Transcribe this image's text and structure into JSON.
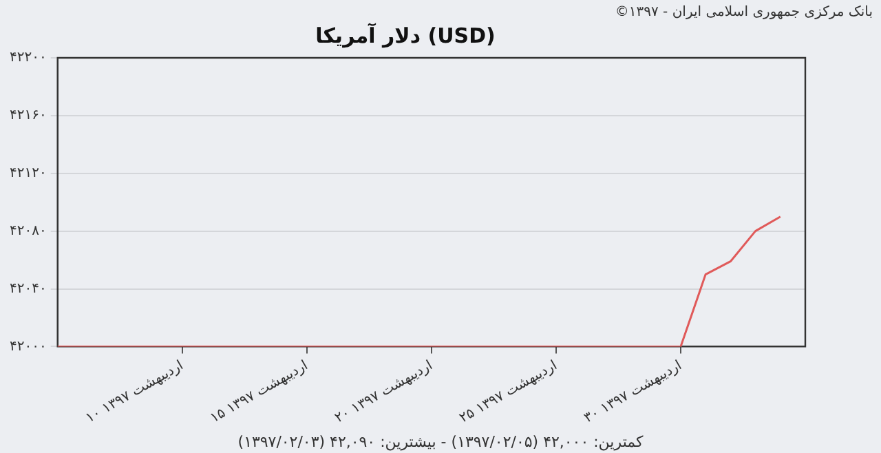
{
  "chart_data": {
    "type": "line",
    "title": "دلار آمریکا (USD)",
    "annotations": [
      "بانک مرکزی جمهوری اسلامی ایران - ۱۳۹۷©",
      "کمترین: ۴۲,۰۰۰ (۱۳۹۷/۰۲/۰۵) - بیشترین: ۴۲,۰۹۰ (۱۳۹۷/۰۲/۰۳)"
    ],
    "categories": [
      null,
      null,
      null,
      null,
      null,
      "۱۰ اردیبهشت ۱۳۹۷",
      null,
      null,
      null,
      null,
      "۱۵ اردیبهشت ۱۳۹۷",
      null,
      null,
      null,
      null,
      "۲۰ اردیبهشت ۱۳۹۷",
      null,
      null,
      null,
      null,
      "۲۵ اردیبهشت ۱۳۹۷",
      null,
      null,
      null,
      null,
      "۳۰ اردیبهشت ۱۳۹۷",
      null,
      null,
      null,
      null,
      null
    ],
    "series": [
      {
        "color": "#e05a5a",
        "values": [
          42000,
          42000,
          42000,
          42000,
          42000,
          42000,
          42000,
          42000,
          42000,
          42000,
          42000,
          42000,
          42000,
          42000,
          42000,
          42000,
          42000,
          42000,
          42000,
          42000,
          42000,
          42000,
          42000,
          42000,
          42000,
          42000,
          42050,
          42059,
          42080,
          42090,
          null
        ]
      }
    ],
    "ylim": [
      42000,
      42200
    ],
    "yticks": [
      {
        "value": 42000,
        "label": "۴۲۰۰۰"
      },
      {
        "value": 42040,
        "label": "۴۲۰۴۰"
      },
      {
        "value": 42080,
        "label": "۴۲۰۸۰"
      },
      {
        "value": 42120,
        "label": "۴۲۱۲۰"
      },
      {
        "value": 42160,
        "label": "۴۲۱۶۰"
      },
      {
        "value": 42200,
        "label": "۴۲۲۰۰"
      }
    ],
    "grid": "y",
    "legend": false,
    "marker": "none",
    "line_style": "solid"
  }
}
